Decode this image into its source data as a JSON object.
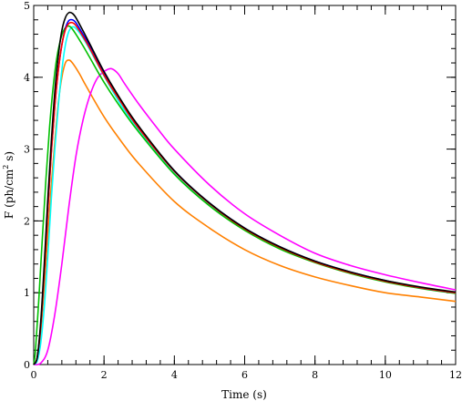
{
  "chart_data": {
    "type": "line",
    "xlabel": "Time (s)",
    "ylabel": {
      "base": "F (ph/cm",
      "sup": "2",
      "tail": " s)"
    },
    "xlim": [
      0,
      12
    ],
    "ylim": [
      0,
      5
    ],
    "xticks": [
      0,
      2,
      4,
      6,
      8,
      10,
      12
    ],
    "xtick_labels": [
      "0",
      "2",
      "4",
      "6",
      "8",
      "10",
      "12"
    ],
    "yticks": [
      0,
      1,
      2,
      3,
      4,
      5
    ],
    "ytick_labels": [
      "0",
      "1",
      "2",
      "3",
      "4",
      "5"
    ],
    "x_minor_step": 0.4,
    "y_minor_step": 0.2,
    "grid": false,
    "legend": "none",
    "series": [
      {
        "color": "#ff8000",
        "points": [
          [
            0,
            0
          ],
          [
            0.1,
            0.08
          ],
          [
            0.2,
            0.45
          ],
          [
            0.3,
            1.1
          ],
          [
            0.4,
            1.8
          ],
          [
            0.5,
            2.5
          ],
          [
            0.6,
            3.1
          ],
          [
            0.7,
            3.65
          ],
          [
            0.8,
            4.0
          ],
          [
            0.9,
            4.2
          ],
          [
            1.0,
            4.24
          ],
          [
            1.1,
            4.2
          ],
          [
            1.3,
            4.05
          ],
          [
            1.5,
            3.87
          ],
          [
            2,
            3.45
          ],
          [
            2.5,
            3.1
          ],
          [
            3,
            2.79
          ],
          [
            4,
            2.27
          ],
          [
            5,
            1.9
          ],
          [
            6,
            1.6
          ],
          [
            7,
            1.38
          ],
          [
            8,
            1.22
          ],
          [
            9,
            1.1
          ],
          [
            10,
            1.0
          ],
          [
            11,
            0.94
          ],
          [
            12,
            0.88
          ]
        ]
      },
      {
        "color": "#ff00ff",
        "points": [
          [
            0,
            0
          ],
          [
            0.2,
            0.02
          ],
          [
            0.4,
            0.2
          ],
          [
            0.6,
            0.7
          ],
          [
            0.8,
            1.4
          ],
          [
            1.0,
            2.2
          ],
          [
            1.2,
            2.9
          ],
          [
            1.4,
            3.4
          ],
          [
            1.6,
            3.75
          ],
          [
            1.8,
            3.98
          ],
          [
            2.0,
            4.08
          ],
          [
            2.2,
            4.12
          ],
          [
            2.4,
            4.05
          ],
          [
            2.6,
            3.9
          ],
          [
            3,
            3.62
          ],
          [
            3.5,
            3.3
          ],
          [
            4,
            3.0
          ],
          [
            5,
            2.5
          ],
          [
            6,
            2.1
          ],
          [
            7,
            1.8
          ],
          [
            8,
            1.55
          ],
          [
            9,
            1.38
          ],
          [
            10,
            1.25
          ],
          [
            11,
            1.14
          ],
          [
            12,
            1.04
          ]
        ]
      },
      {
        "color": "#00ffff",
        "points": [
          [
            0,
            0
          ],
          [
            0.1,
            0.05
          ],
          [
            0.2,
            0.3
          ],
          [
            0.3,
            0.8
          ],
          [
            0.4,
            1.5
          ],
          [
            0.5,
            2.3
          ],
          [
            0.6,
            3.0
          ],
          [
            0.7,
            3.6
          ],
          [
            0.8,
            4.1
          ],
          [
            0.9,
            4.45
          ],
          [
            1.0,
            4.64
          ],
          [
            1.1,
            4.7
          ],
          [
            1.2,
            4.68
          ],
          [
            1.4,
            4.55
          ],
          [
            1.6,
            4.38
          ],
          [
            2,
            4.02
          ],
          [
            2.5,
            3.6
          ],
          [
            3,
            3.26
          ],
          [
            4,
            2.66
          ],
          [
            5,
            2.22
          ],
          [
            6,
            1.88
          ],
          [
            7,
            1.62
          ],
          [
            8,
            1.43
          ],
          [
            9,
            1.28
          ],
          [
            10,
            1.16
          ],
          [
            11,
            1.07
          ],
          [
            12,
            1.0
          ]
        ]
      },
      {
        "color": "#00c000",
        "points": [
          [
            0,
            0
          ],
          [
            0.05,
            0.2
          ],
          [
            0.15,
            0.95
          ],
          [
            0.25,
            1.8
          ],
          [
            0.35,
            2.6
          ],
          [
            0.45,
            3.3
          ],
          [
            0.55,
            3.85
          ],
          [
            0.65,
            4.25
          ],
          [
            0.75,
            4.5
          ],
          [
            0.85,
            4.65
          ],
          [
            0.95,
            4.71
          ],
          [
            1.05,
            4.7
          ],
          [
            1.2,
            4.6
          ],
          [
            1.4,
            4.44
          ],
          [
            1.6,
            4.27
          ],
          [
            2,
            3.93
          ],
          [
            2.5,
            3.56
          ],
          [
            3,
            3.23
          ],
          [
            4,
            2.65
          ],
          [
            5,
            2.21
          ],
          [
            6,
            1.87
          ],
          [
            7,
            1.61
          ],
          [
            8,
            1.42
          ],
          [
            9,
            1.27
          ],
          [
            10,
            1.15
          ],
          [
            11,
            1.06
          ],
          [
            12,
            0.99
          ]
        ]
      },
      {
        "color": "#0000ff",
        "points": [
          [
            0,
            0
          ],
          [
            0.1,
            0.1
          ],
          [
            0.2,
            0.55
          ],
          [
            0.3,
            1.3
          ],
          [
            0.4,
            2.15
          ],
          [
            0.5,
            2.95
          ],
          [
            0.6,
            3.6
          ],
          [
            0.7,
            4.1
          ],
          [
            0.8,
            4.45
          ],
          [
            0.9,
            4.68
          ],
          [
            1.0,
            4.79
          ],
          [
            1.1,
            4.8
          ],
          [
            1.2,
            4.76
          ],
          [
            1.4,
            4.6
          ],
          [
            1.6,
            4.43
          ],
          [
            2,
            4.06
          ],
          [
            2.5,
            3.66
          ],
          [
            3,
            3.3
          ],
          [
            4,
            2.7
          ],
          [
            5,
            2.25
          ],
          [
            6,
            1.9
          ],
          [
            7,
            1.64
          ],
          [
            8,
            1.44
          ],
          [
            9,
            1.29
          ],
          [
            10,
            1.17
          ],
          [
            11,
            1.07
          ],
          [
            12,
            1.0
          ]
        ]
      },
      {
        "color": "#ff0000",
        "points": [
          [
            0,
            0
          ],
          [
            0.1,
            0.1
          ],
          [
            0.2,
            0.55
          ],
          [
            0.3,
            1.3
          ],
          [
            0.4,
            2.15
          ],
          [
            0.5,
            2.95
          ],
          [
            0.6,
            3.6
          ],
          [
            0.7,
            4.1
          ],
          [
            0.8,
            4.45
          ],
          [
            0.9,
            4.66
          ],
          [
            1.0,
            4.75
          ],
          [
            1.1,
            4.76
          ],
          [
            1.2,
            4.72
          ],
          [
            1.4,
            4.57
          ],
          [
            1.6,
            4.4
          ],
          [
            2,
            4.03
          ],
          [
            2.5,
            3.64
          ],
          [
            3,
            3.28
          ],
          [
            4,
            2.69
          ],
          [
            5,
            2.24
          ],
          [
            6,
            1.89
          ],
          [
            7,
            1.63
          ],
          [
            8,
            1.43
          ],
          [
            9,
            1.28
          ],
          [
            10,
            1.16
          ],
          [
            11,
            1.07
          ],
          [
            12,
            1.0
          ]
        ]
      },
      {
        "color": "#000000",
        "points": [
          [
            0,
            0
          ],
          [
            0.1,
            0.1
          ],
          [
            0.2,
            0.6
          ],
          [
            0.3,
            1.4
          ],
          [
            0.4,
            2.3
          ],
          [
            0.5,
            3.1
          ],
          [
            0.6,
            3.8
          ],
          [
            0.7,
            4.3
          ],
          [
            0.8,
            4.65
          ],
          [
            0.9,
            4.83
          ],
          [
            1.0,
            4.9
          ],
          [
            1.1,
            4.89
          ],
          [
            1.2,
            4.83
          ],
          [
            1.4,
            4.65
          ],
          [
            1.6,
            4.46
          ],
          [
            2,
            4.08
          ],
          [
            2.5,
            3.67
          ],
          [
            3,
            3.31
          ],
          [
            4,
            2.7
          ],
          [
            5,
            2.25
          ],
          [
            6,
            1.9
          ],
          [
            7,
            1.64
          ],
          [
            8,
            1.44
          ],
          [
            9,
            1.29
          ],
          [
            10,
            1.17
          ],
          [
            11,
            1.08
          ],
          [
            12,
            1.01
          ]
        ]
      }
    ]
  }
}
